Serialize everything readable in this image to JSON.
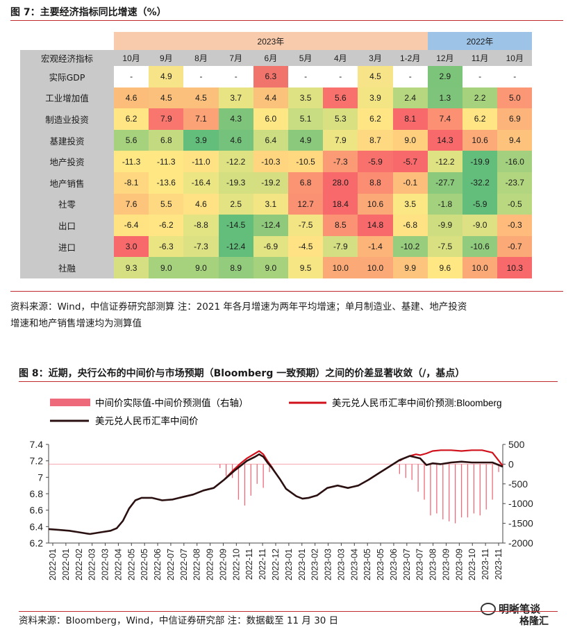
{
  "fig7": {
    "title": "图 7：主要经济指标同比增速（%）",
    "year_2023": "2023年",
    "year_2022": "2022年",
    "corner": "宏观经济指标",
    "months": [
      "10月",
      "9月",
      "8月",
      "7月",
      "6月",
      "5月",
      "4月",
      "3月",
      "1-2月",
      "12月",
      "11月",
      "10月"
    ],
    "rows": [
      {
        "label": "实际GDP",
        "values": [
          "-",
          "4.9",
          "-",
          "-",
          "6.3",
          "-",
          "-",
          "4.5",
          "-",
          "2.9",
          "-",
          "-"
        ],
        "colors": [
          "#ffffff",
          "#f7e488",
          "#ffffff",
          "#ffffff",
          "#f0736c",
          "#ffffff",
          "#ffffff",
          "#f7e488",
          "#ffffff",
          "#7cc47a",
          "#ffffff",
          "#ffffff"
        ]
      },
      {
        "label": "工业增加值",
        "values": [
          "4.6",
          "4.5",
          "4.5",
          "3.7",
          "4.4",
          "3.5",
          "5.6",
          "3.9",
          "2.4",
          "1.3",
          "2.2",
          "5.0"
        ],
        "colors": [
          "#fbbd79",
          "#fbc07b",
          "#fbc07b",
          "#e8e383",
          "#fbc27c",
          "#dfe283",
          "#f8716c",
          "#f3e584",
          "#b6d77f",
          "#7fc47b",
          "#a6d27e",
          "#fb9774"
        ]
      },
      {
        "label": "制造业投资",
        "values": [
          "6.2",
          "7.9",
          "7.1",
          "4.3",
          "6.0",
          "5.1",
          "5.3",
          "6.2",
          "8.1",
          "7.4",
          "6.2",
          "6.9"
        ],
        "colors": [
          "#ffe584",
          "#f8766e",
          "#fba276",
          "#7ec57b",
          "#fde784",
          "#c8dc81",
          "#d8e082",
          "#ffe584",
          "#f8696b",
          "#fb9073",
          "#ffe584",
          "#fdb47a"
        ]
      },
      {
        "label": "基建投资",
        "values": [
          "5.6",
          "6.8",
          "3.9",
          "4.6",
          "6.4",
          "4.9",
          "7.9",
          "8.7",
          "9.0",
          "14.3",
          "10.6",
          "9.4"
        ],
        "colors": [
          "#a6d27e",
          "#c3da80",
          "#63be7b",
          "#74c27b",
          "#cddd81",
          "#8bc97c",
          "#ede583",
          "#ffd981",
          "#ffcf7e",
          "#f8696b",
          "#fcab78",
          "#fdc37c"
        ]
      },
      {
        "label": "地产投资",
        "values": [
          "-11.3",
          "-11.3",
          "-11.0",
          "-12.2",
          "-10.3",
          "-10.5",
          "-7.3",
          "-5.9",
          "-5.7",
          "-12.2",
          "-19.9",
          "-16.0"
        ],
        "colors": [
          "#ffe784",
          "#ffe784",
          "#ffe283",
          "#dfe283",
          "#ffd67f",
          "#ffd880",
          "#fb9b75",
          "#f8716c",
          "#f8696b",
          "#dfe283",
          "#63be7b",
          "#a2d07e"
        ]
      },
      {
        "label": "地产销售",
        "values": [
          "-8.1",
          "-13.6",
          "-16.4",
          "-19.3",
          "-19.2",
          "6.8",
          "28.0",
          "8.8",
          "-0.1",
          "-27.7",
          "-32.2",
          "-23.7"
        ],
        "colors": [
          "#ffd780",
          "#ffe784",
          "#ece583",
          "#d4df82",
          "#d5df82",
          "#fa9473",
          "#f8696b",
          "#fa8d72",
          "#fdbd7b",
          "#8bc97c",
          "#63be7b",
          "#b2d57f"
        ]
      },
      {
        "label": "社零",
        "values": [
          "7.6",
          "5.5",
          "4.6",
          "2.5",
          "3.1",
          "12.7",
          "18.4",
          "10.6",
          "3.5",
          "-1.8",
          "-5.9",
          "-0.5"
        ],
        "colors": [
          "#fdc47c",
          "#ffd981",
          "#fee283",
          "#e3e383",
          "#f3e584",
          "#fa9173",
          "#f8696b",
          "#fbaa77",
          "#fbe884",
          "#a4d17e",
          "#63be7b",
          "#bad880"
        ]
      },
      {
        "label": "出口",
        "values": [
          "-6.4",
          "-6.2",
          "-8.8",
          "-14.5",
          "-12.4",
          "-7.5",
          "8.5",
          "14.8",
          "-6.8",
          "-9.9",
          "-9.0",
          "-0.3"
        ],
        "colors": [
          "#ffe383",
          "#ffe583",
          "#e2e383",
          "#63be7b",
          "#8fca7c",
          "#f3e584",
          "#fa9273",
          "#f8696b",
          "#fee283",
          "#cfdd81",
          "#dde183",
          "#febb7b"
        ]
      },
      {
        "label": "进口",
        "values": [
          "3.0",
          "-6.3",
          "-7.3",
          "-12.4",
          "-6.9",
          "-4.5",
          "-7.9",
          "-1.4",
          "-10.2",
          "-7.5",
          "-10.6",
          "-0.7"
        ],
        "colors": [
          "#f8696b",
          "#ebe483",
          "#dce183",
          "#63be7b",
          "#e2e383",
          "#ffe283",
          "#d3df82",
          "#fdb479",
          "#97cd7d",
          "#d9e082",
          "#91cb7d",
          "#fbaa77"
        ]
      },
      {
        "label": "社融",
        "values": [
          "9.3",
          "9.0",
          "9.0",
          "8.9",
          "9.0",
          "9.5",
          "10.0",
          "10.0",
          "9.9",
          "9.6",
          "10.0",
          "10.3"
        ],
        "colors": [
          "#d6df82",
          "#a6d27e",
          "#a6d27e",
          "#94cc7d",
          "#a6d27e",
          "#f6e684",
          "#fbaa77",
          "#fbaa77",
          "#fcc47c",
          "#ffe784",
          "#fbaa77",
          "#f8696b"
        ]
      }
    ],
    "source": "资料来源：Wind，中信证券研究部测算  注：2021 年各月增速为两年平均增速；单月制造业、基建、地产投资增速和地产销售增速均为测算值",
    "source_line1": "资料来源：Wind，中信证券研究部测算  注：2021 年各月增速为两年平均增速；单月制造业、基建、地产投资",
    "source_line2": "增速和地产销售增速均为测算值"
  },
  "fig8": {
    "title": "图 8：近期，央行公布的中间价与市场预期（Bloomberg 一致预期）之间的价差显著收敛（/，基点）",
    "legend": {
      "diff": "中间价实际值-中间价预测值（右轴）",
      "forecast": "美元兑人民币汇率中间价预测:Bloomberg",
      "actual": "美元兑人民币汇率中间价"
    },
    "colors": {
      "diff": "#ee6a7a",
      "forecast": "#d0101a",
      "actual": "#2a1010"
    },
    "source": "资料来源：Bloomberg，Wind，中信证券研究部  注：数据截至 11 月 30 日",
    "watermark": "明晰笔谈",
    "watermark2": "格隆汇",
    "chart_data": {
      "type": "line",
      "title": "",
      "x_labels": [
        "2022-01",
        "2022-01",
        "2022-02",
        "2022-03",
        "2022-03",
        "2022-04",
        "2022-05",
        "2022-05",
        "2022-06",
        "2022-07",
        "2022-07",
        "2022-08",
        "2022-09",
        "2022-09",
        "2022-10",
        "2022-11",
        "2022-11",
        "2022-12",
        "2023-01",
        "2023-01",
        "2023-02",
        "2023-03",
        "2023-03",
        "2023-04",
        "2023-05",
        "2023-05",
        "2023-06",
        "2023-07",
        "2023-07",
        "2023-08",
        "2023-09",
        "2023-09",
        "2023-10",
        "2023-11",
        "2023-11"
      ],
      "y_left": {
        "ticks": [
          "7.4",
          "7.2",
          "7",
          "6.8",
          "6.6",
          "6.4",
          "6.2"
        ],
        "ylim": [
          6.2,
          7.4
        ]
      },
      "y_right": {
        "ticks": [
          "500",
          "0",
          "-500",
          "-1000",
          "-1500",
          "-2000"
        ],
        "ylim": [
          -2000,
          500
        ]
      },
      "series": [
        {
          "name": "美元兑人民币汇率中间价",
          "axis": "left",
          "x": [
            0,
            0.5,
            1,
            1.5,
            2,
            2.5,
            3,
            3.3,
            3.6,
            3.9,
            4.2,
            4.5,
            5,
            5.5,
            6,
            6.5,
            7,
            7.5,
            8,
            8.5,
            9,
            9.3,
            9.6,
            10,
            10.2,
            10.4,
            10.6,
            10.8,
            11,
            11.2,
            11.5,
            12,
            12.3,
            12.6,
            13,
            13.5,
            14,
            14.5,
            15,
            15.5,
            16,
            16.5,
            17,
            17.5,
            18,
            18.3,
            18.6,
            19,
            19.5,
            20,
            20.5,
            21,
            21.5,
            22
          ],
          "y": [
            6.37,
            6.36,
            6.35,
            6.33,
            6.31,
            6.33,
            6.35,
            6.38,
            6.47,
            6.62,
            6.72,
            6.75,
            6.75,
            6.72,
            6.73,
            6.76,
            6.79,
            6.84,
            6.87,
            6.97,
            7.08,
            7.14,
            7.2,
            7.25,
            7.28,
            7.25,
            7.18,
            7.12,
            7.05,
            6.98,
            6.86,
            6.77,
            6.74,
            6.75,
            6.78,
            6.87,
            6.9,
            6.87,
            6.9,
            6.97,
            7.05,
            7.13,
            7.21,
            7.26,
            7.23,
            7.15,
            7.17,
            7.16,
            7.18,
            7.19,
            7.18,
            7.18,
            7.18,
            7.13
          ]
        },
        {
          "name": "美元兑人民币汇率中间价预测:Bloomberg",
          "axis": "left",
          "x": [
            8.5,
            9,
            9.3,
            9.6,
            10,
            10.2,
            10.4,
            10.6,
            10.8,
            11,
            17,
            17.2,
            17.5,
            17.8,
            18,
            18.3,
            18.6,
            19,
            19.5,
            20,
            20.5,
            21,
            21.5,
            22
          ],
          "y": [
            6.97,
            7.1,
            7.17,
            7.23,
            7.29,
            7.32,
            7.28,
            7.2,
            7.13,
            7.05,
            7.2,
            7.23,
            7.26,
            7.28,
            7.27,
            7.29,
            7.32,
            7.33,
            7.33,
            7.32,
            7.33,
            7.33,
            7.3,
            7.14
          ]
        },
        {
          "name": "中间价实际值-中间价预测值（右轴）",
          "axis": "right",
          "x": [
            8.3,
            8.6,
            8.9,
            9.2,
            9.5,
            9.8,
            10.1,
            10.4,
            10.7,
            17.0,
            17.3,
            17.6,
            17.9,
            18.2,
            18.5,
            18.8,
            19.1,
            19.4,
            19.7,
            20.0,
            20.3,
            20.6,
            20.9,
            21.2,
            21.5,
            21.8
          ],
          "y": [
            -100,
            -300,
            -350,
            -900,
            -1050,
            -800,
            -500,
            -600,
            -200,
            -250,
            -350,
            -400,
            -700,
            -900,
            -1300,
            -1250,
            -1400,
            -1450,
            -1500,
            -1350,
            -1350,
            -1250,
            -1300,
            -1150,
            -900,
            -200
          ]
        }
      ]
    }
  }
}
